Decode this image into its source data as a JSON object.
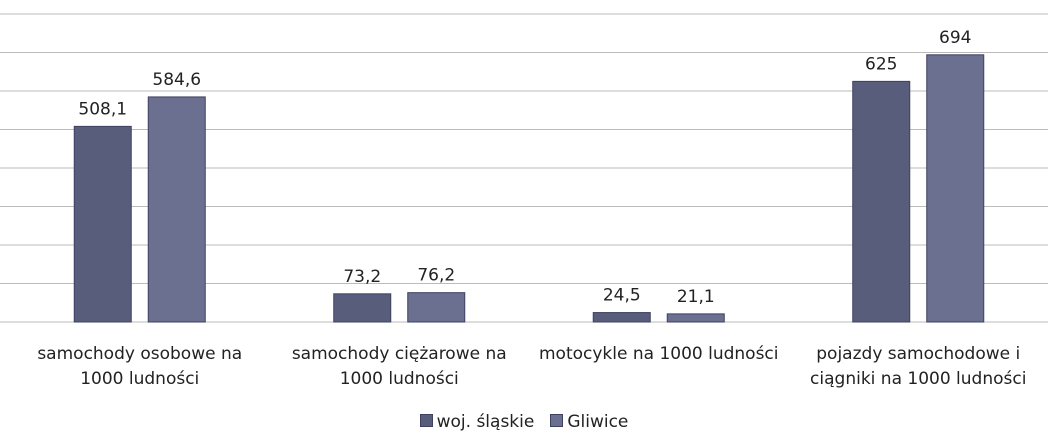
{
  "chart_data": {
    "type": "bar",
    "categories": [
      "samochody osobowe na 1000 ludności",
      "samochody ciężarowe na 1000 ludności",
      "motocykle na 1000 ludności",
      "pojazdy samochodowe i ciągniki na 1000 ludności"
    ],
    "series": [
      {
        "name": "woj. śląskie",
        "color": "#595d7c",
        "values": [
          508.1,
          73.2,
          24.5,
          625
        ],
        "value_labels": [
          "508,1",
          "73,2",
          "24,5",
          "625"
        ]
      },
      {
        "name": "Gliwice",
        "color": "#6b6f90",
        "values": [
          584.6,
          76.2,
          21.1,
          694
        ],
        "value_labels": [
          "584,6",
          "76,2",
          "21,1",
          "694"
        ]
      }
    ],
    "ylim": [
      0,
      800
    ],
    "yticks": [
      0,
      100,
      200,
      300,
      400,
      500,
      600,
      700,
      800
    ],
    "grid": true,
    "legend": "bottom"
  }
}
